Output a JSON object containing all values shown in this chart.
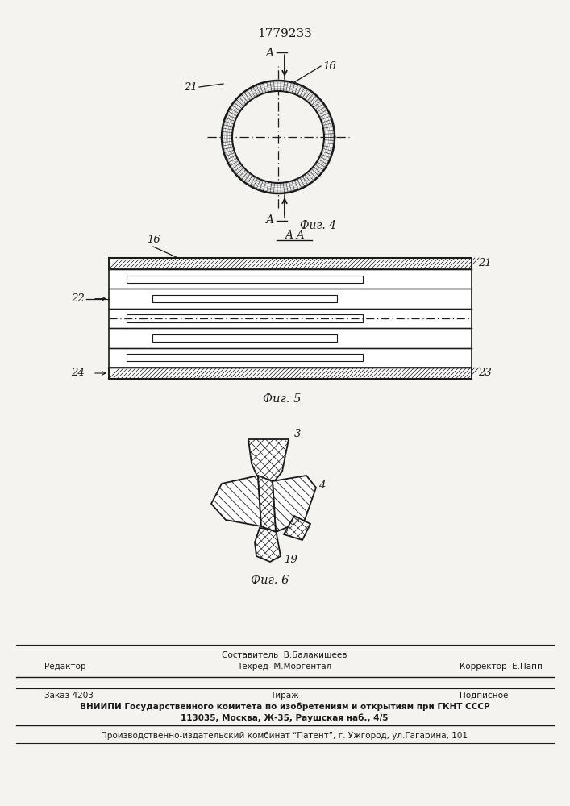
{
  "patent_number": "1779233",
  "fig4_label": "Фиг. 4",
  "fig5_label": "Фиг. 5",
  "fig6_label": "Фиг. 6",
  "section_label": "A-A",
  "bg_color": "#f5f3f0",
  "line_color": "#1a1a1a",
  "label_16": "16",
  "label_21": "21",
  "label_22": "22",
  "label_23": "23",
  "label_24": "24",
  "label_3": "3",
  "label_4": "4",
  "label_16b": "16",
  "label_19": "19",
  "arrow_A": "A",
  "editor_label": "Редактор",
  "composer_label": "Составитель  В.Балакишеев",
  "techred_label": "Техред  М.Моргентал",
  "corrector_label": "Корректор  Е.Папп",
  "zakaz_label": "Заказ 4203",
  "tirazh_label": "Тираж",
  "podpisnoe_label": "Подписное",
  "vniiipi_label": "ВНИИПИ Государственного комитета по изобретениям и открытиям при ГКНТ СССР",
  "address_label": "113035, Москва, Ж-35, Раушская наб., 4/5",
  "factory_label": "Производственно-издательский комбинат “Патент”, г. Ужгород, ул.Гагарина, 101"
}
